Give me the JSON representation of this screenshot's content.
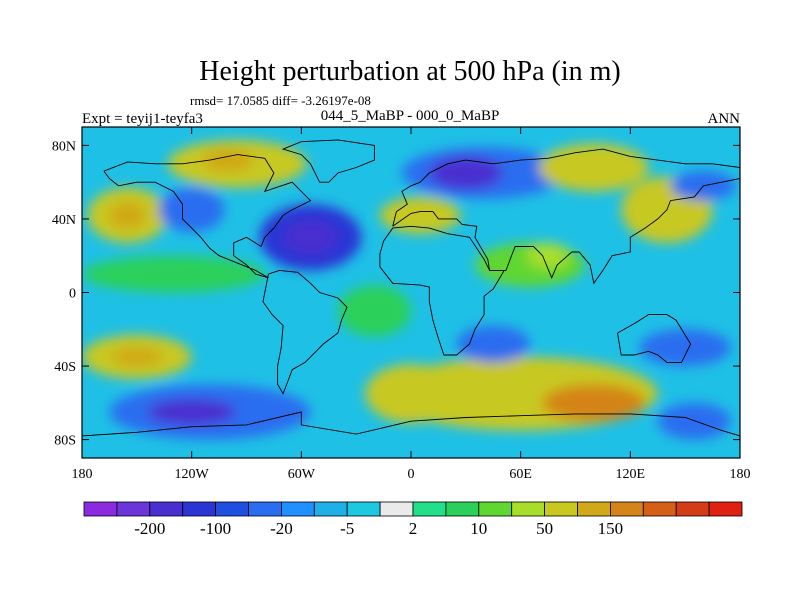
{
  "chart_data": {
    "type": "heatmap",
    "title": "Height perturbation at 500 hPa (in m)",
    "stats_line": "rmsd= 17.0585 diff= -3.26197e-08",
    "experiment_label": "Expt = teyij1-teyfa3",
    "comparison_label": "044_5_MaBP - 000_0_MaBP",
    "season_label": "ANN",
    "x_ticks": [
      {
        "value": -180,
        "label": "180"
      },
      {
        "value": -120,
        "label": "120W"
      },
      {
        "value": -60,
        "label": "60W"
      },
      {
        "value": 0,
        "label": "0"
      },
      {
        "value": 60,
        "label": "60E"
      },
      {
        "value": 120,
        "label": "120E"
      },
      {
        "value": 180,
        "label": "180"
      }
    ],
    "y_ticks": [
      {
        "value": 80,
        "label": "80N"
      },
      {
        "value": 40,
        "label": "40N"
      },
      {
        "value": 0,
        "label": "0"
      },
      {
        "value": -40,
        "label": "40S"
      },
      {
        "value": -80,
        "label": "80S"
      }
    ],
    "x_range": [
      -180,
      180
    ],
    "y_range": [
      -90,
      90
    ],
    "colorbar": {
      "colors": [
        "#8a2be2",
        "#6a35d9",
        "#4a2fd0",
        "#2a35d4",
        "#1f4fe0",
        "#2a6df0",
        "#1e90ff",
        "#1fb0e8",
        "#1ec8e0",
        "#eaeaea",
        "#22e08a",
        "#2ad05a",
        "#60d630",
        "#a8de2a",
        "#c8c820",
        "#d0a818",
        "#d48418",
        "#d46018",
        "#d43c18",
        "#e02010"
      ],
      "labels": [
        {
          "after_index": 1,
          "text": "-200"
        },
        {
          "after_index": 3,
          "text": "-100"
        },
        {
          "after_index": 5,
          "text": "-20"
        },
        {
          "after_index": 7,
          "text": "-5"
        },
        {
          "after_index": 9,
          "text": "2"
        },
        {
          "after_index": 11,
          "text": "10"
        },
        {
          "after_index": 13,
          "text": "50"
        },
        {
          "after_index": 15,
          "text": "150"
        }
      ]
    },
    "features": [
      {
        "name": "n-pacific-high",
        "lon": -155,
        "lat": 42,
        "rx": 22,
        "ry": 15,
        "value": 50
      },
      {
        "name": "n-pacific-high-core",
        "lon": -155,
        "lat": 42,
        "rx": 10,
        "ry": 7,
        "value": 60
      },
      {
        "name": "arctic-canada-high",
        "lon": -95,
        "lat": 70,
        "rx": 38,
        "ry": 13,
        "value": 50
      },
      {
        "name": "hudson-high-core",
        "lon": -100,
        "lat": 72,
        "rx": 14,
        "ry": 6,
        "value": 60
      },
      {
        "name": "n-atlantic-low",
        "lon": -55,
        "lat": 30,
        "rx": 28,
        "ry": 18,
        "value": -50
      },
      {
        "name": "n-atlantic-low-core",
        "lon": -55,
        "lat": 30,
        "rx": 14,
        "ry": 9,
        "value": -100
      },
      {
        "name": "europe-high",
        "lon": 5,
        "lat": 42,
        "rx": 22,
        "ry": 10,
        "value": 40
      },
      {
        "name": "siberia-low",
        "lon": 40,
        "lat": 65,
        "rx": 45,
        "ry": 14,
        "value": -40
      },
      {
        "name": "siberia-low-core",
        "lon": 30,
        "lat": 65,
        "rx": 20,
        "ry": 9,
        "value": -100
      },
      {
        "name": "e-asia-high",
        "lon": 100,
        "lat": 68,
        "rx": 30,
        "ry": 13,
        "value": 50
      },
      {
        "name": "nw-pacific-high",
        "lon": 140,
        "lat": 45,
        "rx": 25,
        "ry": 18,
        "value": 40
      },
      {
        "name": "nw-pacific-low",
        "lon": 160,
        "lat": 58,
        "rx": 18,
        "ry": 8,
        "value": -40
      },
      {
        "name": "c-asia-green",
        "lon": 65,
        "lat": 15,
        "rx": 30,
        "ry": 12,
        "value": 10
      },
      {
        "name": "arabia-high",
        "lon": 75,
        "lat": 20,
        "rx": 12,
        "ry": 7,
        "value": 30
      },
      {
        "name": "tropical-pacific-green",
        "lon": -130,
        "lat": 10,
        "rx": 50,
        "ry": 10,
        "value": 8
      },
      {
        "name": "tropical-atlantic-green",
        "lon": -20,
        "lat": -10,
        "rx": 20,
        "ry": 14,
        "value": 8
      },
      {
        "name": "s-pacific-high",
        "lon": -150,
        "lat": -35,
        "rx": 30,
        "ry": 12,
        "value": 50
      },
      {
        "name": "s-pacific-high-core",
        "lon": -150,
        "lat": -35,
        "rx": 14,
        "ry": 5,
        "value": 70
      },
      {
        "name": "s-indian-high",
        "lon": 60,
        "lat": -55,
        "rx": 75,
        "ry": 20,
        "value": 50
      },
      {
        "name": "s-indian-high-core",
        "lon": 100,
        "lat": -60,
        "rx": 28,
        "ry": 10,
        "value": 80
      },
      {
        "name": "s-atlantic-high",
        "lon": 0,
        "lat": -55,
        "rx": 25,
        "ry": 16,
        "value": 40
      },
      {
        "name": "s-pacific-low",
        "lon": -110,
        "lat": -65,
        "rx": 55,
        "ry": 15,
        "value": -40
      },
      {
        "name": "s-pacific-low-core",
        "lon": -120,
        "lat": -65,
        "rx": 24,
        "ry": 7,
        "value": -100
      },
      {
        "name": "australia-low",
        "lon": 150,
        "lat": -30,
        "rx": 25,
        "ry": 10,
        "value": -30
      },
      {
        "name": "s-ocean-low",
        "lon": 155,
        "lat": -70,
        "rx": 20,
        "ry": 10,
        "value": -40
      },
      {
        "name": "s-africa-low",
        "lon": 45,
        "lat": -28,
        "rx": 20,
        "ry": 10,
        "value": -30
      },
      {
        "name": "n-pacific-low",
        "lon": -120,
        "lat": 45,
        "rx": 18,
        "ry": 12,
        "value": -40
      }
    ],
    "coastlines": [
      [
        [
          -168,
          66
        ],
        [
          -155,
          71
        ],
        [
          -140,
          70
        ],
        [
          -125,
          70
        ],
        [
          -110,
          72
        ],
        [
          -95,
          75
        ],
        [
          -80,
          73
        ],
        [
          -75,
          65
        ],
        [
          -80,
          55
        ],
        [
          -65,
          60
        ],
        [
          -60,
          55
        ],
        [
          -55,
          50
        ],
        [
          -65,
          45
        ],
        [
          -70,
          42
        ],
        [
          -75,
          35
        ],
        [
          -80,
          30
        ],
        [
          -82,
          25
        ],
        [
          -90,
          30
        ],
        [
          -97,
          27
        ],
        [
          -97,
          20
        ],
        [
          -90,
          15
        ],
        [
          -85,
          10
        ],
        [
          -78,
          8
        ],
        [
          -85,
          12
        ],
        [
          -95,
          16
        ],
        [
          -105,
          20
        ],
        [
          -110,
          24
        ],
        [
          -115,
          30
        ],
        [
          -120,
          35
        ],
        [
          -125,
          40
        ],
        [
          -125,
          48
        ],
        [
          -130,
          55
        ],
        [
          -140,
          60
        ],
        [
          -150,
          60
        ],
        [
          -160,
          58
        ],
        [
          -165,
          62
        ],
        [
          -168,
          66
        ]
      ],
      [
        [
          -78,
          10
        ],
        [
          -72,
          12
        ],
        [
          -62,
          11
        ],
        [
          -55,
          5
        ],
        [
          -50,
          0
        ],
        [
          -40,
          -3
        ],
        [
          -35,
          -8
        ],
        [
          -38,
          -15
        ],
        [
          -40,
          -22
        ],
        [
          -48,
          -28
        ],
        [
          -55,
          -35
        ],
        [
          -58,
          -38
        ],
        [
          -65,
          -42
        ],
        [
          -68,
          -50
        ],
        [
          -70,
          -55
        ],
        [
          -73,
          -50
        ],
        [
          -73,
          -40
        ],
        [
          -71,
          -30
        ],
        [
          -70,
          -18
        ],
        [
          -76,
          -12
        ],
        [
          -81,
          -5
        ],
        [
          -80,
          0
        ],
        [
          -78,
          10
        ]
      ],
      [
        [
          -15,
          28
        ],
        [
          -17,
          21
        ],
        [
          -17,
          14
        ],
        [
          -10,
          5
        ],
        [
          5,
          4
        ],
        [
          10,
          3
        ],
        [
          10,
          -5
        ],
        [
          12,
          -15
        ],
        [
          15,
          -25
        ],
        [
          18,
          -34
        ],
        [
          25,
          -34
        ],
        [
          32,
          -28
        ],
        [
          35,
          -20
        ],
        [
          40,
          -12
        ],
        [
          40,
          -2
        ],
        [
          45,
          2
        ],
        [
          51,
          12
        ],
        [
          43,
          12
        ],
        [
          40,
          18
        ],
        [
          32,
          30
        ],
        [
          20,
          32
        ],
        [
          10,
          35
        ],
        [
          0,
          36
        ],
        [
          -10,
          35
        ],
        [
          -15,
          28
        ]
      ],
      [
        [
          -10,
          36
        ],
        [
          -8,
          44
        ],
        [
          -2,
          48
        ],
        [
          -5,
          55
        ],
        [
          0,
          58
        ],
        [
          5,
          60
        ],
        [
          10,
          65
        ],
        [
          20,
          70
        ],
        [
          30,
          72
        ],
        [
          45,
          70
        ],
        [
          60,
          72
        ],
        [
          75,
          73
        ],
        [
          90,
          76
        ],
        [
          105,
          78
        ],
        [
          120,
          74
        ],
        [
          135,
          72
        ],
        [
          150,
          70
        ],
        [
          165,
          70
        ],
        [
          180,
          68
        ],
        [
          180,
          62
        ],
        [
          170,
          60
        ],
        [
          160,
          58
        ],
        [
          155,
          52
        ],
        [
          142,
          50
        ],
        [
          140,
          45
        ],
        [
          135,
          40
        ],
        [
          128,
          35
        ],
        [
          120,
          30
        ],
        [
          120,
          22
        ],
        [
          110,
          20
        ],
        [
          105,
          12
        ],
        [
          100,
          5
        ],
        [
          98,
          15
        ],
        [
          92,
          22
        ],
        [
          88,
          22
        ],
        [
          80,
          15
        ],
        [
          77,
          8
        ],
        [
          72,
          20
        ],
        [
          67,
          25
        ],
        [
          57,
          25
        ],
        [
          55,
          20
        ],
        [
          52,
          12
        ],
        [
          43,
          12
        ],
        [
          42,
          18
        ],
        [
          35,
          30
        ],
        [
          36,
          36
        ],
        [
          28,
          37
        ],
        [
          25,
          40
        ],
        [
          15,
          40
        ],
        [
          12,
          44
        ],
        [
          5,
          44
        ],
        [
          0,
          43
        ],
        [
          -10,
          36
        ]
      ],
      [
        [
          113,
          -22
        ],
        [
          115,
          -34
        ],
        [
          122,
          -34
        ],
        [
          130,
          -32
        ],
        [
          135,
          -34
        ],
        [
          140,
          -38
        ],
        [
          148,
          -38
        ],
        [
          153,
          -28
        ],
        [
          145,
          -15
        ],
        [
          140,
          -12
        ],
        [
          136,
          -12
        ],
        [
          130,
          -12
        ],
        [
          122,
          -17
        ],
        [
          113,
          -22
        ]
      ],
      [
        [
          -180,
          -78
        ],
        [
          -150,
          -76
        ],
        [
          -120,
          -73
        ],
        [
          -90,
          -72
        ],
        [
          -60,
          -65
        ],
        [
          -60,
          -72
        ],
        [
          -30,
          -77
        ],
        [
          0,
          -70
        ],
        [
          30,
          -68
        ],
        [
          60,
          -67
        ],
        [
          90,
          -66
        ],
        [
          120,
          -66
        ],
        [
          150,
          -68
        ],
        [
          170,
          -75
        ],
        [
          180,
          -78
        ]
      ],
      [
        [
          -50,
          60
        ],
        [
          -45,
          60
        ],
        [
          -40,
          65
        ],
        [
          -30,
          68
        ],
        [
          -20,
          72
        ],
        [
          -20,
          80
        ],
        [
          -40,
          83
        ],
        [
          -60,
          82
        ],
        [
          -70,
          78
        ],
        [
          -60,
          75
        ],
        [
          -55,
          70
        ],
        [
          -50,
          60
        ]
      ]
    ]
  }
}
